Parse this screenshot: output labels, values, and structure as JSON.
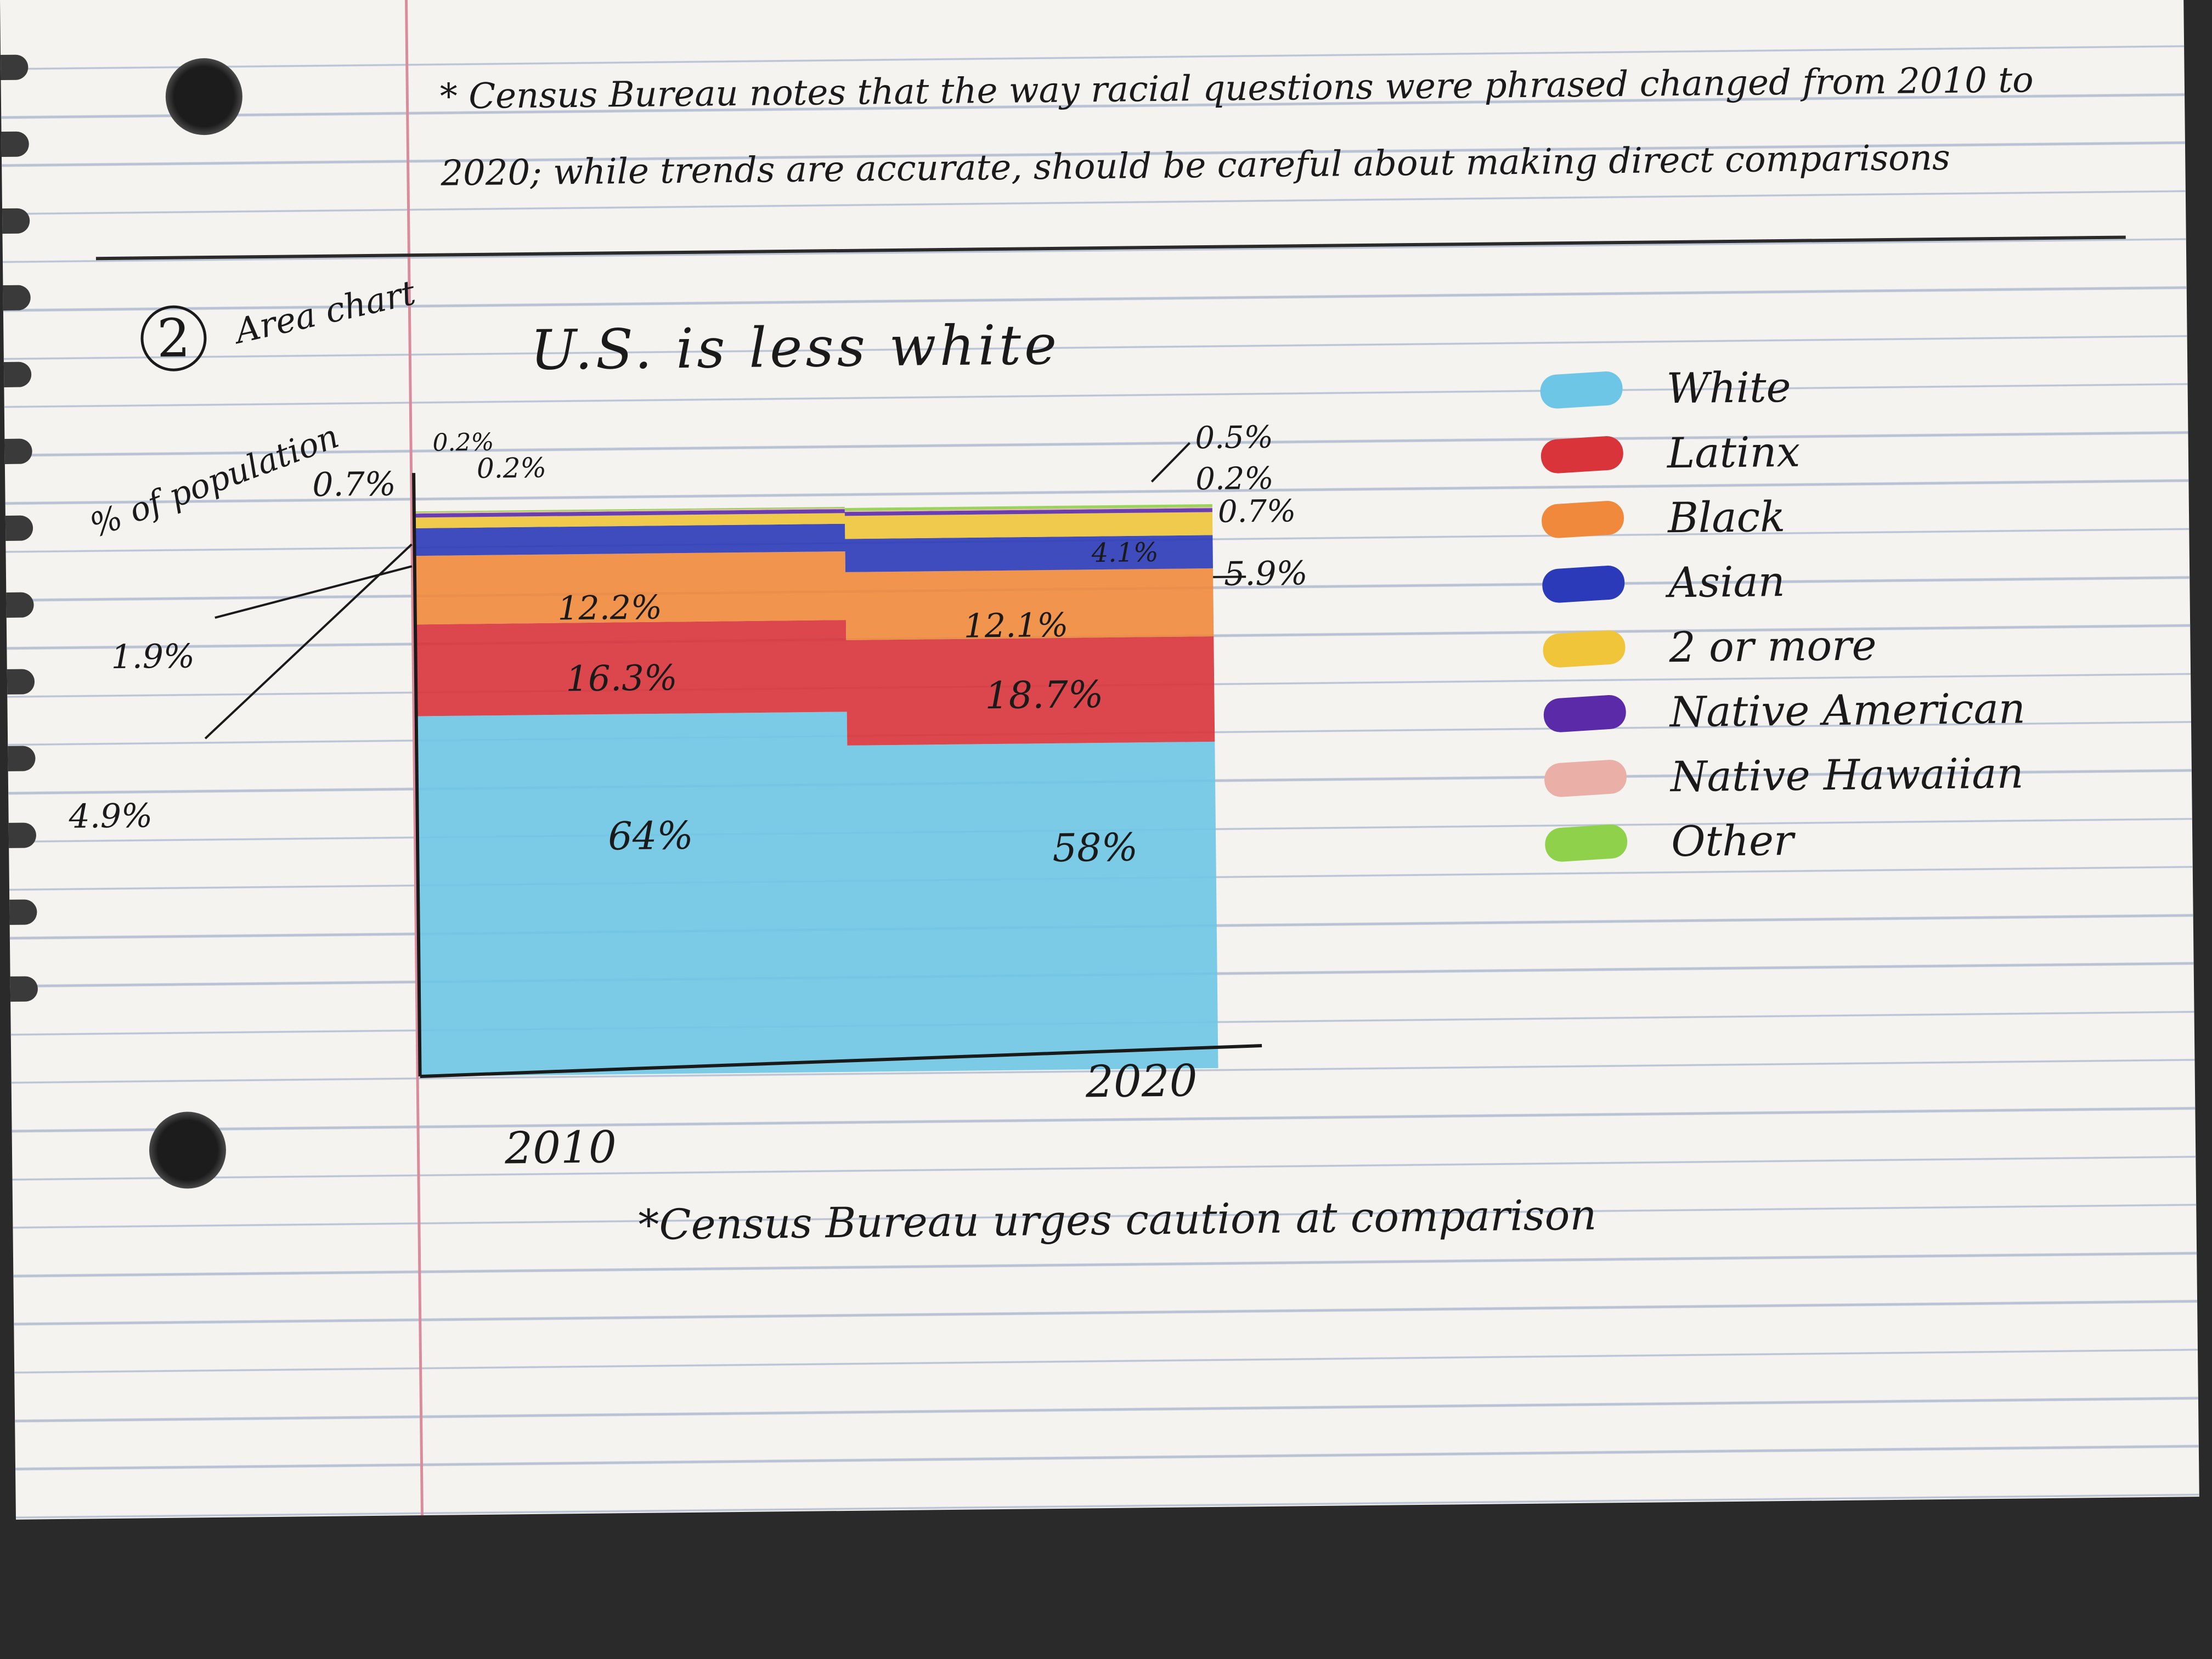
{
  "notes": {
    "top": "* Census Bureau notes that the way racial questions were phrased changed from 2010 to 2020; while trends are accurate, should be careful about making direct comparisons",
    "bottom": "*Census Bureau urges caution at comparison"
  },
  "section": {
    "number": "2",
    "label": "Area chart"
  },
  "chart_data": {
    "type": "area",
    "title": "U.S. is less white",
    "ylabel": "% of population",
    "categories": [
      "2010",
      "2020"
    ],
    "series": [
      {
        "name": "White",
        "values": [
          64,
          58
        ],
        "color": "#6ec6e6"
      },
      {
        "name": "Latinx",
        "values": [
          16.3,
          18.7
        ],
        "color": "#d8343a"
      },
      {
        "name": "Black",
        "values": [
          12.2,
          12.1
        ],
        "color": "#f0893c"
      },
      {
        "name": "Asian",
        "values": [
          4.9,
          5.9
        ],
        "color": "#2b3ab8"
      },
      {
        "name": "2 or more",
        "values": [
          1.9,
          4.1
        ],
        "color": "#f0c53a"
      },
      {
        "name": "Native American",
        "values": [
          0.7,
          0.7
        ],
        "color": "#5a2aa8"
      },
      {
        "name": "Native Hawaiian",
        "values": [
          0.2,
          0.2
        ],
        "color": "#eab0a8"
      },
      {
        "name": "Other",
        "values": [
          0.2,
          0.5
        ],
        "color": "#8fd14a"
      }
    ],
    "labels": {
      "left": [
        "0.7%",
        "0.2%",
        "0.2%",
        "1.9%",
        "4.9%"
      ],
      "inline_2010": [
        "12.2%",
        "16.3%",
        "64%"
      ],
      "inline_2020": [
        "4.1%",
        "12.1%",
        "18.7%",
        "58%"
      ],
      "right": [
        "0.5%",
        "0.2%",
        "0.7%",
        "5.9%"
      ]
    },
    "legend_position": "right"
  }
}
